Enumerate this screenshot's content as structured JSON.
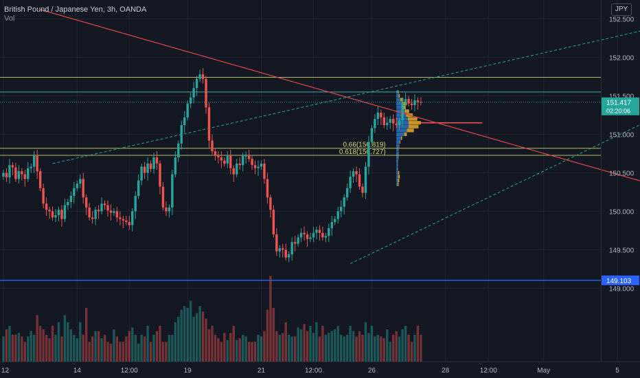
{
  "header": {
    "title": "British Pound / Japanese Yen, 3h, OANDA",
    "volume_label": "Vol",
    "currency_button": "JPY"
  },
  "colors": {
    "background": "#131722",
    "up": "#26a69a",
    "down": "#ef5350",
    "grid": "#1e2330",
    "axis_text": "#b2b5be",
    "trend_red": "#e0454a",
    "channel": "#26a69a",
    "fib": "#d4d86a",
    "cyan_level": "#4cc9c0",
    "support_blue": "#2962ff",
    "profile_blue": "#2a6fb8",
    "profile_orange": "#d9a32a"
  },
  "chart_data": {
    "type": "candlestick",
    "title": "British Pound / Japanese Yen, 3h, OANDA",
    "y_axis": {
      "min": 147.93,
      "max": 152.62,
      "ticks": [
        149.0,
        149.5,
        150.0,
        150.5,
        151.0,
        151.5,
        152.0,
        152.5
      ],
      "tick_labels": [
        "149.000",
        "149.500",
        "150.000",
        "150.500",
        "151.000",
        "151.500",
        "152.000",
        "152.500"
      ]
    },
    "x_axis": {
      "labels": [
        "12",
        "14",
        "12:00",
        "19",
        "21",
        "12:00",
        "26",
        "28",
        "12:00",
        "May",
        "5"
      ],
      "label_bars": [
        0,
        24,
        41,
        60,
        84,
        101,
        120,
        144,
        158,
        176,
        200
      ]
    },
    "last_price": {
      "value": 151.417,
      "label": "151.417",
      "countdown": "02:20:06"
    },
    "support": {
      "value": 149.103,
      "label": "149.103"
    },
    "horizontal_levels": [
      {
        "name": "yellow-high",
        "value": 151.74
      },
      {
        "name": "cyan-level",
        "value": 151.55
      },
      {
        "name": "fib-066",
        "value": 150.819,
        "label": "0.66(150.819)"
      },
      {
        "name": "fib-0618",
        "value": 150.727,
        "label": "0.618(150.727)"
      }
    ],
    "trendline": {
      "from": {
        "bar": 12,
        "price": 152.62
      },
      "to": {
        "bar": 214,
        "price": 150.32
      }
    },
    "channel": {
      "upper": {
        "from": {
          "bar": 16,
          "price": 150.62
        },
        "to": {
          "bar": 214,
          "price": 152.4
        }
      },
      "lower": {
        "from": {
          "bar": 113,
          "price": 149.32
        },
        "to": {
          "bar": 214,
          "price": 151.25
        }
      }
    },
    "poc": {
      "price": 151.15,
      "from_bar": 136,
      "to_bar": 156
    },
    "volume_profile": {
      "start_bar": 128,
      "rows": [
        {
          "price": 151.55,
          "total": 4,
          "up_share": 0.7
        },
        {
          "price": 151.5,
          "total": 6,
          "up_share": 0.65
        },
        {
          "price": 151.45,
          "total": 12,
          "up_share": 0.55
        },
        {
          "price": 151.4,
          "total": 18,
          "up_share": 0.6
        },
        {
          "price": 151.35,
          "total": 16,
          "up_share": 0.7
        },
        {
          "price": 151.3,
          "total": 22,
          "up_share": 0.65
        },
        {
          "price": 151.25,
          "total": 28,
          "up_share": 0.6
        },
        {
          "price": 151.2,
          "total": 36,
          "up_share": 0.55
        },
        {
          "price": 151.15,
          "total": 42,
          "up_share": 0.5
        },
        {
          "price": 151.1,
          "total": 38,
          "up_share": 0.55
        },
        {
          "price": 151.05,
          "total": 30,
          "up_share": 0.6
        },
        {
          "price": 151.0,
          "total": 18,
          "up_share": 0.75
        },
        {
          "price": 150.95,
          "total": 10,
          "up_share": 0.8
        },
        {
          "price": 150.9,
          "total": 7,
          "up_share": 0.85
        },
        {
          "price": 150.85,
          "total": 5,
          "up_share": 0.9
        },
        {
          "price": 150.8,
          "total": 4,
          "up_share": 0.9
        },
        {
          "price": 150.75,
          "total": 4,
          "up_share": 0.9
        },
        {
          "price": 150.7,
          "total": 4,
          "up_share": 0.9
        },
        {
          "price": 150.65,
          "total": 3,
          "up_share": 0.9
        },
        {
          "price": 150.6,
          "total": 3,
          "up_share": 0.9
        },
        {
          "price": 150.55,
          "total": 3,
          "up_share": 0.9
        },
        {
          "price": 150.5,
          "total": 5,
          "up_share": 0.6
        },
        {
          "price": 150.45,
          "total": 6,
          "up_share": 0.5
        },
        {
          "price": 150.4,
          "total": 5,
          "up_share": 0.5
        },
        {
          "price": 150.35,
          "total": 4,
          "up_share": 0.5
        }
      ]
    },
    "ohlc_closes": [
      150.5,
      150.44,
      150.6,
      150.57,
      150.42,
      150.52,
      150.48,
      150.42,
      150.56,
      150.58,
      150.72,
      150.52,
      150.3,
      150.1,
      150.02,
      150.0,
      149.92,
      149.95,
      150.02,
      149.9,
      150.08,
      150.12,
      150.2,
      150.3,
      150.36,
      150.42,
      150.18,
      150.05,
      149.92,
      149.9,
      150.02,
      150.0,
      150.1,
      150.08,
      150.01,
      149.98,
      150.0,
      149.92,
      149.9,
      149.88,
      149.86,
      149.82,
      150.0,
      150.2,
      150.4,
      150.58,
      150.5,
      150.62,
      150.55,
      150.7,
      150.62,
      150.32,
      150.05,
      150.0,
      150.05,
      150.48,
      150.7,
      150.88,
      151.12,
      151.22,
      151.4,
      151.48,
      151.6,
      151.72,
      151.78,
      151.72,
      151.35,
      150.92,
      150.78,
      150.72,
      150.7,
      150.66,
      150.62,
      150.72,
      150.56,
      150.48,
      150.62,
      150.6,
      150.72,
      150.72,
      150.68,
      150.6,
      150.56,
      150.58,
      150.62,
      150.42,
      150.18,
      150.02,
      149.7,
      149.48,
      149.52,
      149.5,
      149.4,
      149.44,
      149.6,
      149.58,
      149.66,
      149.72,
      149.7,
      149.64,
      149.66,
      149.72,
      149.76,
      149.72,
      149.66,
      149.68,
      149.78,
      149.86,
      149.9,
      150.0,
      150.06,
      150.18,
      150.3,
      150.45,
      150.52,
      150.48,
      150.32,
      150.24,
      150.58,
      150.9,
      151.08,
      151.2,
      151.28,
      151.22,
      151.12,
      151.15,
      151.2,
      151.14,
      151.12,
      151.18,
      151.42,
      151.46,
      151.4,
      151.38,
      151.44,
      151.42,
      151.417
    ],
    "ohlc_open_first": 150.45,
    "volumes": [
      28,
      36,
      40,
      30,
      30,
      32,
      28,
      22,
      28,
      34,
      30,
      52,
      40,
      36,
      30,
      26,
      40,
      30,
      44,
      28,
      52,
      44,
      36,
      30,
      26,
      44,
      30,
      60,
      22,
      28,
      34,
      34,
      26,
      30,
      22,
      20,
      36,
      28,
      22,
      22,
      28,
      34,
      38,
      30,
      20,
      30,
      28,
      40,
      22,
      30,
      34,
      40,
      22,
      22,
      30,
      30,
      44,
      50,
      58,
      62,
      60,
      68,
      50,
      54,
      62,
      56,
      48,
      36,
      40,
      30,
      26,
      22,
      32,
      24,
      32,
      40,
      24,
      26,
      30,
      28,
      22,
      22,
      22,
      30,
      28,
      34,
      58,
      96,
      60,
      34,
      30,
      32,
      44,
      30,
      28,
      28,
      38,
      36,
      42,
      34,
      40,
      32,
      44,
      28,
      40,
      30,
      32,
      34,
      36,
      40,
      30,
      28,
      30,
      40,
      34,
      28,
      34,
      30,
      44,
      32,
      40,
      28,
      30,
      28,
      26,
      36,
      22,
      30,
      34,
      28,
      36,
      40,
      30,
      22,
      30,
      40,
      30,
      40
    ]
  }
}
